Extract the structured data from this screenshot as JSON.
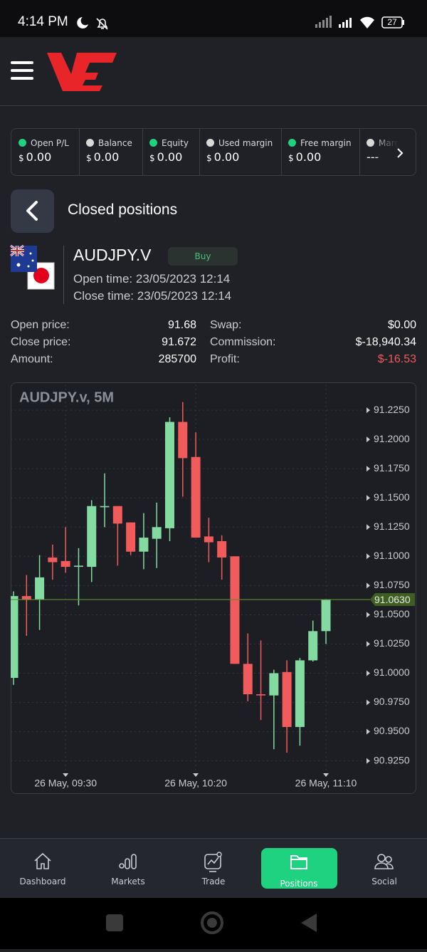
{
  "status_bar": {
    "time": "4:14 PM",
    "battery": "27"
  },
  "summary": [
    {
      "label": "Open P/L",
      "currency": "$",
      "value": "0.00",
      "dot": "#1fd27f"
    },
    {
      "label": "Balance",
      "currency": "$",
      "value": "0.00",
      "dot": "#d8d8d8"
    },
    {
      "label": "Equity",
      "currency": "$",
      "value": "0.00",
      "dot": "#1fd27f"
    },
    {
      "label": "Used margin",
      "currency": "$",
      "value": "0.00",
      "dot": "#d8d8d8"
    },
    {
      "label": "Free margin",
      "currency": "$",
      "value": "0.00",
      "dot": "#1fd27f"
    },
    {
      "label": "Margin level",
      "value": "---",
      "dot": "#d8d8d8"
    }
  ],
  "page_header": {
    "title": "Closed positions"
  },
  "position": {
    "symbol": "AUDJPY.V",
    "side": "Buy",
    "open_time": {
      "label": "Open time:",
      "value": "23/05/2023 12:14"
    },
    "close_time": {
      "label": "Close time:",
      "value": "23/05/2023 12:14"
    },
    "details": [
      [
        {
          "label": "Open price:",
          "value": "91.68"
        },
        {
          "label": "Swap:",
          "value": "$0.00"
        }
      ],
      [
        {
          "label": "Close price:",
          "value": "91.672"
        },
        {
          "label": "Commission:",
          "value": "$-18,940.34"
        }
      ],
      [
        {
          "label": "Amount:",
          "value": "285700"
        },
        {
          "label": "Profit:",
          "value": "$-16.53",
          "color": "#f05a5a"
        }
      ]
    ]
  },
  "chart_data": {
    "type": "candlestick",
    "title": "AUDJPY.v, 5M",
    "categories": [
      null,
      null,
      null,
      null,
      "26 May, 09:30",
      null,
      null,
      null,
      null,
      null,
      null,
      null,
      null,
      null,
      "26 May, 10:20",
      null,
      null,
      null,
      null,
      null,
      null,
      null,
      null,
      null,
      "26 May, 11:10"
    ],
    "open": [
      90.996,
      91.066,
      91.063,
      91.099,
      91.096,
      91.091,
      91.091,
      91.142,
      91.143,
      91.129,
      91.104,
      91.115,
      91.124,
      91.215,
      91.185,
      91.117,
      91.113,
      91.1,
      91.008,
      90.982,
      90.981,
      91.001,
      90.954,
      91.011,
      91.036
    ],
    "high": [
      91.07,
      91.084,
      91.101,
      91.11,
      91.125,
      91.107,
      91.148,
      91.171,
      91.143,
      91.129,
      91.137,
      91.146,
      91.219,
      91.232,
      91.206,
      91.133,
      91.118,
      91.1,
      91.034,
      91.028,
      91.003,
      91.011,
      91.013,
      91.045,
      91.063
    ],
    "low": [
      90.99,
      91.032,
      91.037,
      91.08,
      91.086,
      91.058,
      91.078,
      91.125,
      91.092,
      91.101,
      91.089,
      91.09,
      91.113,
      91.151,
      91.116,
      91.095,
      91.08,
      91.008,
      90.976,
      90.96,
      90.935,
      90.932,
      90.938,
      91.01,
      91.025
    ],
    "close": [
      91.066,
      91.063,
      91.082,
      91.095,
      91.091,
      91.092,
      91.143,
      91.143,
      91.128,
      91.104,
      91.116,
      91.125,
      91.215,
      91.184,
      91.116,
      91.112,
      91.099,
      91.008,
      90.982,
      90.981,
      91.0,
      90.954,
      91.011,
      91.036,
      91.063
    ],
    "up_color": "#84dba2",
    "down_color": "#f25b5b",
    "ylim": [
      90.915,
      91.247
    ],
    "yticks": [
      {
        "value": 91.225,
        "label": "91.2250"
      },
      {
        "value": 91.2,
        "label": "91.2000"
      },
      {
        "value": 91.175,
        "label": "91.1750"
      },
      {
        "value": 91.15,
        "label": "91.1500"
      },
      {
        "value": 91.125,
        "label": "91.1250"
      },
      {
        "value": 91.1,
        "label": "91.1000"
      },
      {
        "value": 91.075,
        "label": "91.0750"
      },
      {
        "value": 91.05,
        "label": "91.0500"
      },
      {
        "value": 91.025,
        "label": "91.0250"
      },
      {
        "value": 91.0,
        "label": "91.0000"
      },
      {
        "value": 90.975,
        "label": "90.9750"
      },
      {
        "value": 90.95,
        "label": "90.9500"
      },
      {
        "value": 90.925,
        "label": "90.9250"
      }
    ],
    "current_price": {
      "value": 91.063,
      "label": "91.0630"
    },
    "current_price_color": "#5e8f2e",
    "grid": true
  },
  "nav": [
    {
      "label": "Dashboard"
    },
    {
      "label": "Markets"
    },
    {
      "label": "Trade"
    },
    {
      "label": "Positions",
      "active": true
    },
    {
      "label": "Social"
    }
  ]
}
